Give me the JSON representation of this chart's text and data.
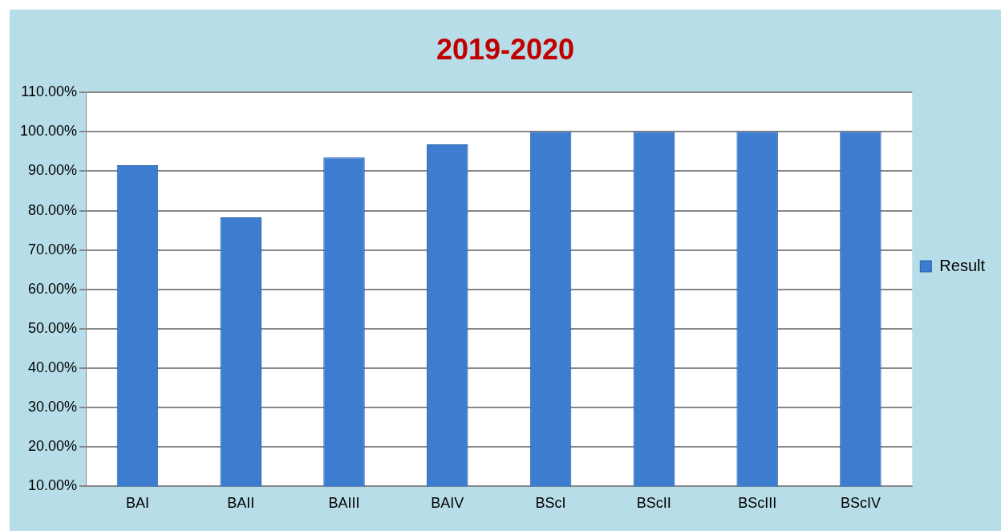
{
  "chart_data": {
    "type": "bar",
    "title": "2019-2020",
    "categories": [
      "BAI",
      "BAII",
      "BAIII",
      "BAIV",
      "BScI",
      "BScII",
      "BScIII",
      "BScIV"
    ],
    "series": [
      {
        "name": "Result",
        "color": "#3c7dd0",
        "values": [
          91.5,
          78.3,
          93.5,
          96.8,
          100,
          100,
          100,
          100
        ]
      }
    ],
    "ylim": [
      10,
      110
    ],
    "yticks": [
      {
        "value": 10,
        "label": "10.00%"
      },
      {
        "value": 20,
        "label": "20.00%"
      },
      {
        "value": 30,
        "label": "30.00%"
      },
      {
        "value": 40,
        "label": "40.00%"
      },
      {
        "value": 50,
        "label": "50.00%"
      },
      {
        "value": 60,
        "label": "60.00%"
      },
      {
        "value": 70,
        "label": "70.00%"
      },
      {
        "value": 80,
        "label": "80.00%"
      },
      {
        "value": 90,
        "label": "90.00%"
      },
      {
        "value": 100,
        "label": "100.00%"
      },
      {
        "value": 110,
        "label": "110.00%"
      }
    ],
    "grid": "y",
    "legend": "right"
  }
}
